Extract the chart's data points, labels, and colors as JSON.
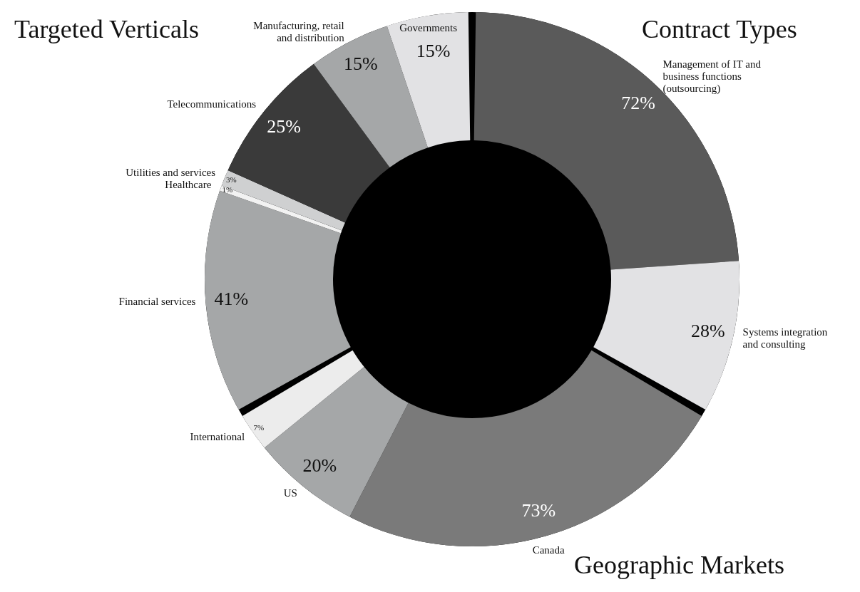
{
  "chart_data": [
    {
      "type": "donut",
      "title": "Contract Types",
      "categories": [
        "Management of IT and\nbusiness functions\n(outsourcing)",
        "Systems integration\nand consulting"
      ],
      "values": [
        72,
        28
      ],
      "colors": [
        "#5a5a5a",
        "#e2e2e4"
      ],
      "value_labels": [
        "72%",
        "28%"
      ]
    },
    {
      "type": "donut",
      "title": "Geographic Markets",
      "categories": [
        "Canada",
        "US",
        "International"
      ],
      "values": [
        73,
        20,
        7
      ],
      "colors": [
        "#7a7a7a",
        "#a5a7a8",
        "#ececec"
      ],
      "value_labels": [
        "73%",
        "20%",
        "7%"
      ]
    },
    {
      "type": "donut",
      "title": "Targeted Verticals",
      "categories": [
        "Financial services",
        "Healthcare",
        "Utilities and services",
        "Telecommunications",
        "Manufacturing, retail\nand distribution",
        "Governments"
      ],
      "values": [
        41,
        1,
        3,
        25,
        15,
        15
      ],
      "colors": [
        "#a5a7a8",
        "#f2f2f2",
        "#cfd0d1",
        "#3a3a3a",
        "#a5a7a8",
        "#e2e2e4"
      ],
      "value_labels": [
        "41%",
        "1%",
        "3%",
        "25%",
        "15%",
        "15%"
      ]
    }
  ]
}
